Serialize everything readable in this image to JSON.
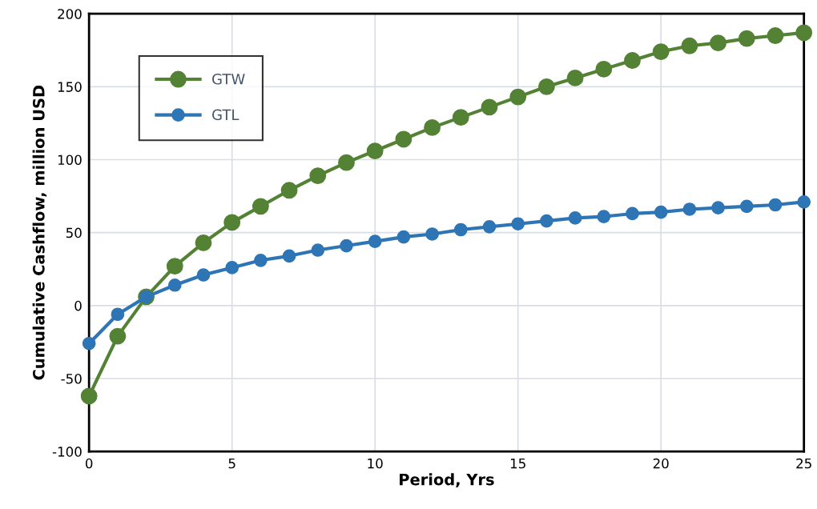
{
  "chart_data": {
    "type": "line",
    "xlabel": "Period, Yrs",
    "ylabel": "Cumulative Cashflow, million USD",
    "x": [
      0,
      1,
      2,
      3,
      4,
      5,
      6,
      7,
      8,
      9,
      10,
      11,
      12,
      13,
      14,
      15,
      16,
      17,
      18,
      19,
      20,
      21,
      22,
      23,
      24,
      25
    ],
    "series": [
      {
        "name": "GTW",
        "color": "#548235",
        "values": [
          -62,
          -21,
          6,
          27,
          43,
          57,
          68,
          79,
          89,
          98,
          106,
          114,
          122,
          129,
          136,
          143,
          150,
          156,
          162,
          168,
          174,
          178,
          180,
          183,
          185,
          187
        ]
      },
      {
        "name": "GTL",
        "color": "#2e75b6",
        "values": [
          -26,
          -6,
          6,
          14,
          21,
          26,
          31,
          34,
          38,
          41,
          44,
          47,
          49,
          52,
          54,
          56,
          58,
          60,
          61,
          63,
          64,
          66,
          67,
          68,
          69,
          71
        ]
      }
    ],
    "xlim": [
      0,
      25
    ],
    "xticks": [
      0,
      5,
      10,
      15,
      20,
      25
    ],
    "ylim": [
      -100,
      200
    ],
    "yticks": [
      -100,
      -50,
      0,
      50,
      100,
      150,
      200
    ],
    "grid": true,
    "legend": "top left",
    "marker": "circle",
    "line_style": "solid"
  }
}
